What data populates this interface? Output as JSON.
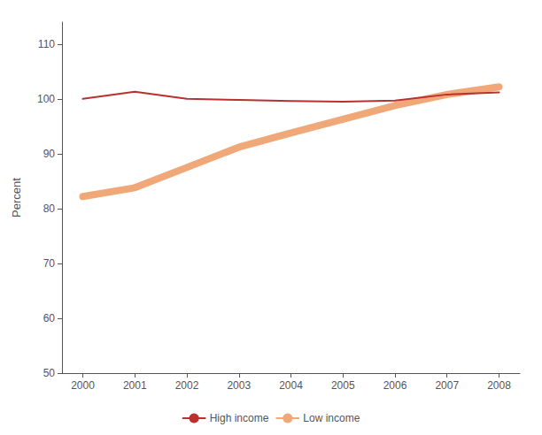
{
  "chart_data": {
    "type": "line",
    "ylabel": "Percent",
    "x": [
      2000,
      2001,
      2002,
      2003,
      2004,
      2005,
      2006,
      2007,
      2008
    ],
    "series": [
      {
        "name": "High income",
        "color": "#B83030",
        "values": [
          100.0,
          101.3,
          100.0,
          99.8,
          99.6,
          99.5,
          99.7,
          100.8,
          101.2
        ]
      },
      {
        "name": "Low income",
        "color": "#F0A878",
        "values": [
          82.2,
          83.8,
          87.5,
          91.2,
          93.8,
          96.3,
          98.8,
          100.8,
          102.2
        ]
      }
    ],
    "xlim": [
      1999.6,
      2008.4
    ],
    "xticks": [
      2000,
      2001,
      2002,
      2003,
      2004,
      2005,
      2006,
      2007,
      2008
    ],
    "ylim": [
      50,
      114
    ],
    "yticks": [
      50,
      60,
      70,
      80,
      90,
      100,
      110
    ],
    "grid": false,
    "legend": "bottom"
  }
}
